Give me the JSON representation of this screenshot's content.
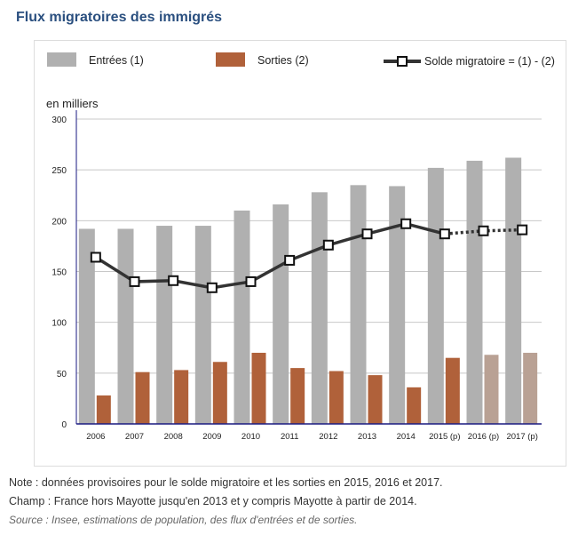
{
  "title": "Flux migratoires des immigrés",
  "chart_data": {
    "type": "bar",
    "ylabel": "en milliers",
    "ylim": [
      0,
      300
    ],
    "yticks": [
      0,
      50,
      100,
      150,
      200,
      250,
      300
    ],
    "grid": true,
    "legend_position": "top",
    "categories": [
      "2006",
      "2007",
      "2008",
      "2009",
      "2010",
      "2011",
      "2012",
      "2013",
      "2014",
      "2015 (p)",
      "2016 (p)",
      "2017 (p)"
    ],
    "series": [
      {
        "name": "Entrées (1)",
        "type": "bar",
        "color": "#b0b0b0",
        "values": [
          192,
          192,
          195,
          195,
          210,
          216,
          228,
          235,
          234,
          252,
          259,
          262
        ]
      },
      {
        "name": "Sorties (2)",
        "type": "bar",
        "color": "#b0613a",
        "provisional_color": "#b9a194",
        "values": [
          28,
          51,
          53,
          61,
          70,
          55,
          52,
          48,
          36,
          65,
          68,
          70
        ]
      },
      {
        "name": "Solde migratoire = (1) - (2)",
        "type": "line",
        "color": "#333333",
        "values": [
          164,
          140,
          141,
          134,
          140,
          161,
          176,
          187,
          197,
          187,
          190,
          191
        ]
      }
    ]
  },
  "notes": [
    "Note : données provisoires pour le solde migratoire et les sorties en 2015, 2016 et 2017.",
    "Champ : France hors Mayotte jusqu'en 2013 et y compris Mayotte à partir de 2014."
  ],
  "source": "Source : Insee, estimations de population, des flux d'entrées et de sorties."
}
